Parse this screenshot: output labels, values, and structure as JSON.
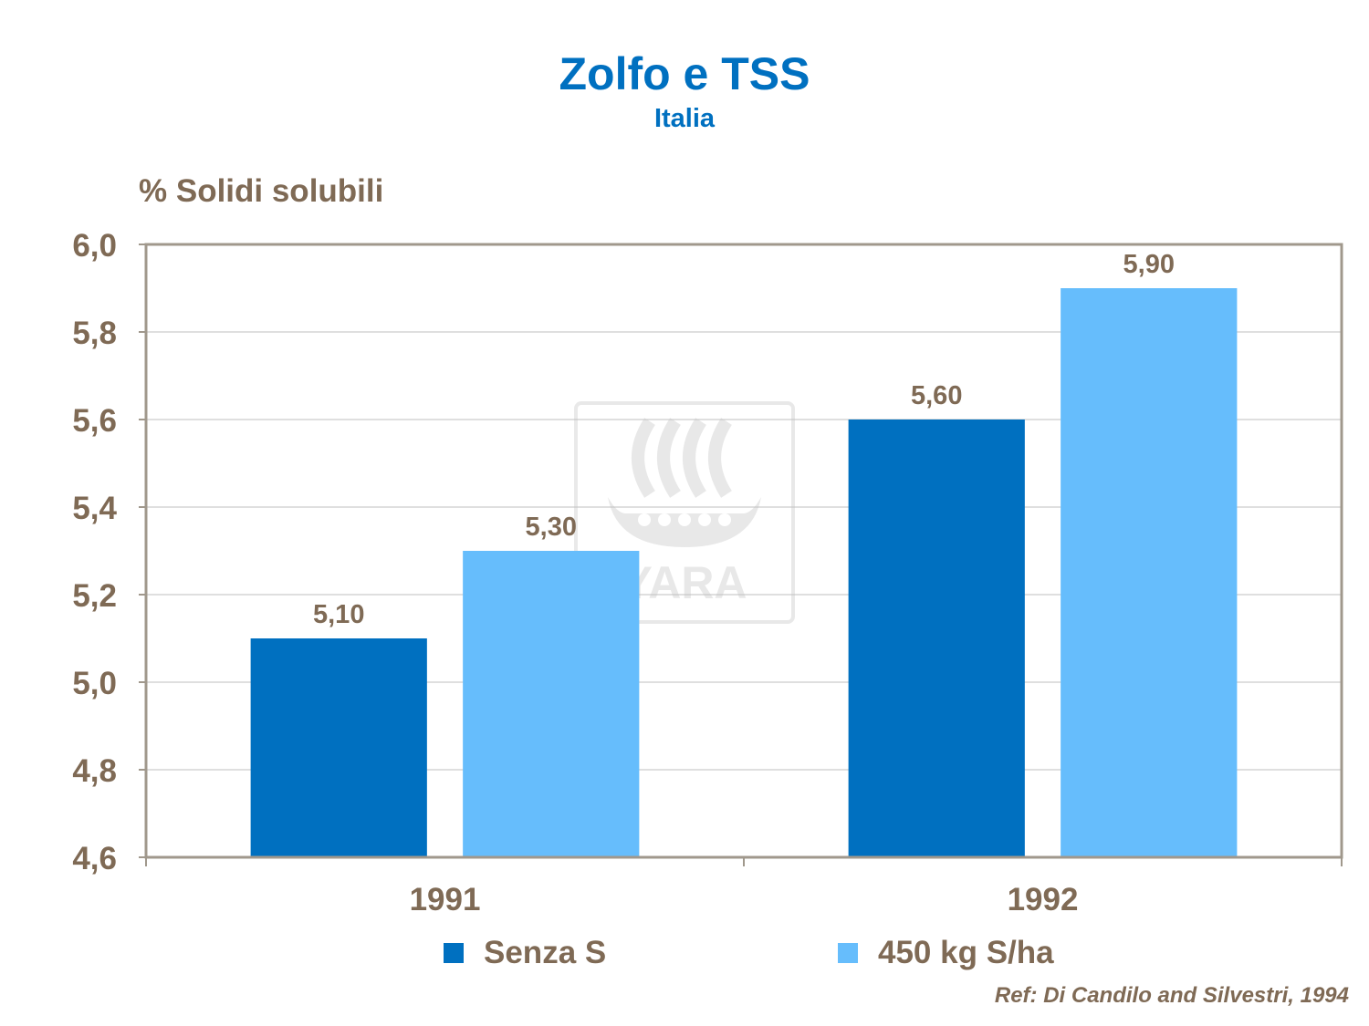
{
  "chart_data": {
    "type": "bar",
    "title": "Zolfo e  TSS",
    "subtitle": "Italia",
    "ylabel": "% Solidi solubili",
    "xlabel": "",
    "categories": [
      "1991",
      "1992"
    ],
    "series": [
      {
        "name": "Senza S",
        "values": [
          5.1,
          5.6
        ],
        "labels": [
          "5,10",
          "5,60"
        ],
        "color": "#0070C0"
      },
      {
        "name": "450 kg S/ha",
        "values": [
          5.3,
          5.9
        ],
        "labels": [
          "5,30",
          "5,90"
        ],
        "color": "#66BDFC"
      }
    ],
    "ylim": [
      4.6,
      6.0
    ],
    "yticks": [
      4.6,
      4.8,
      5.0,
      5.2,
      5.4,
      5.6,
      5.8,
      6.0
    ],
    "ytick_labels": [
      "4,6",
      "4,8",
      "5,0",
      "5,2",
      "5,4",
      "5,6",
      "5,8",
      "6,0"
    ],
    "grid": true,
    "legend_position": "bottom"
  },
  "reference": "Ref: Di Candilo  and  Silvestri,  1994",
  "watermark_text": "YARA",
  "colors": {
    "title": "#0070C0",
    "text": "#7F6A55",
    "axis": "#A0988C",
    "grid": "#BFBFBF"
  }
}
